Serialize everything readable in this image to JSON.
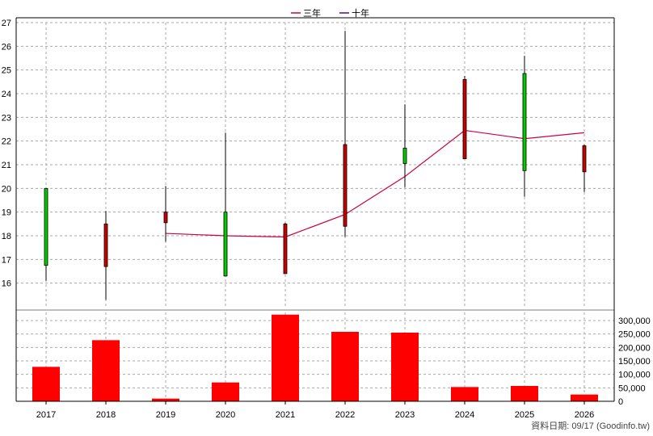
{
  "chart_data": {
    "type": "candlestick",
    "legend": {
      "placement": "top-center",
      "items": [
        {
          "label": "三年",
          "color": "#cc0044"
        },
        {
          "label": "十年",
          "color": "#660099"
        }
      ]
    },
    "categories": [
      "2017",
      "2018",
      "2019",
      "2020",
      "2021",
      "2022",
      "2023",
      "2024",
      "2025",
      "2026"
    ],
    "price_axis": {
      "ylim": [
        15,
        27
      ],
      "ticks": [
        "16",
        "17",
        "18",
        "19",
        "20",
        "21",
        "22",
        "23",
        "24",
        "25",
        "26",
        "27"
      ]
    },
    "volume_axis": {
      "ylim": [
        0,
        330000
      ],
      "ticks": [
        "0",
        "50,000",
        "100,000",
        "150,000",
        "200,000",
        "250,000",
        "300,000"
      ]
    },
    "candles": [
      {
        "year": "2017",
        "open": 16.75,
        "close": 20.0,
        "high": 20.0,
        "low": 16.1
      },
      {
        "year": "2018",
        "open": 18.5,
        "close": 16.7,
        "high": 19.05,
        "low": 15.3
      },
      {
        "year": "2019",
        "open": 19.0,
        "close": 18.55,
        "high": 20.1,
        "low": 17.75
      },
      {
        "year": "2020",
        "open": 16.3,
        "close": 19.0,
        "high": 22.35,
        "low": 16.3
      },
      {
        "year": "2021",
        "open": 18.5,
        "close": 16.4,
        "high": 18.55,
        "low": 16.4
      },
      {
        "year": "2022",
        "open": 21.85,
        "close": 18.4,
        "high": 26.65,
        "low": 17.95
      },
      {
        "year": "2023",
        "open": 21.05,
        "close": 21.7,
        "high": 23.55,
        "low": 20.05
      },
      {
        "year": "2024",
        "open": 24.6,
        "close": 21.25,
        "high": 24.75,
        "low": 21.25
      },
      {
        "year": "2025",
        "open": 20.75,
        "close": 24.85,
        "high": 25.6,
        "low": 19.65
      },
      {
        "year": "2026",
        "open": 21.8,
        "close": 20.7,
        "high": 21.85,
        "low": 19.85
      }
    ],
    "three_year_avg": [
      {
        "year": "2019",
        "value": 18.1
      },
      {
        "year": "2020",
        "value": 18.0
      },
      {
        "year": "2021",
        "value": 17.95
      },
      {
        "year": "2022",
        "value": 18.9
      },
      {
        "year": "2023",
        "value": 20.5
      },
      {
        "year": "2024",
        "value": 22.45
      },
      {
        "year": "2025",
        "value": 22.1
      },
      {
        "year": "2026",
        "value": 22.35
      }
    ],
    "volume": [
      128000,
      227000,
      10000,
      70000,
      322000,
      258000,
      255000,
      53000,
      57000,
      25000
    ],
    "colors": {
      "up": "#00cc00",
      "down": "#cc0000",
      "volume": "#ff0000",
      "avg_line": "#cc0044",
      "grid": "#aaaaaa"
    },
    "grid": true
  },
  "source_note": "資料日期: 09/17 (Goodinfo.tw)"
}
